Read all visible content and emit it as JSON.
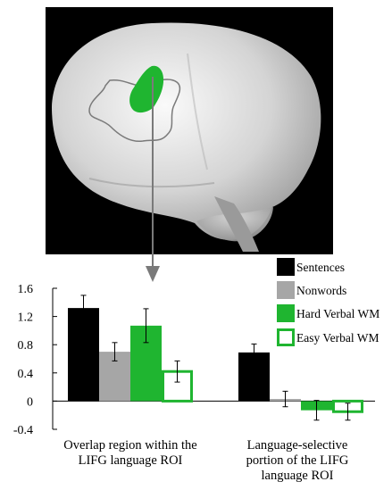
{
  "brain_image": {
    "region_colors": {
      "outline": "#7a7a7a",
      "highlight": "#1fb530",
      "background": "#000000"
    }
  },
  "chart_data": {
    "type": "bar",
    "title": "",
    "xlabel": "",
    "ylabel": "",
    "ylim": [
      -0.4,
      1.6
    ],
    "yticks": [
      "1.6",
      "1.2",
      "0.8",
      "0.4",
      "0",
      "-0.4"
    ],
    "yticks_values": [
      1.6,
      1.2,
      0.8,
      0.4,
      0,
      -0.4
    ],
    "categories": [
      [
        "Overlap region within the",
        "LIFG language ROI"
      ],
      [
        "Language-selective",
        "portion of the LIFG",
        "language ROI"
      ]
    ],
    "series": [
      {
        "name": "Sentences",
        "values": [
          1.32,
          0.69
        ],
        "errors": [
          0.18,
          0.12
        ],
        "fill": "#000000",
        "stroke": "#000000"
      },
      {
        "name": "Nonwords",
        "values": [
          0.7,
          0.03
        ],
        "errors": [
          0.13,
          0.11
        ],
        "fill": "#a6a6a6",
        "stroke": "#a6a6a6"
      },
      {
        "name": "Hard Verbal WM",
        "values": [
          1.07,
          -0.13
        ],
        "errors": [
          0.24,
          0.14
        ],
        "fill": "#1fb530",
        "stroke": "#1fb530"
      },
      {
        "name": "Easy Verbal WM",
        "values": [
          0.42,
          -0.15
        ],
        "errors": [
          0.15,
          0.12
        ],
        "fill": "#ffffff",
        "stroke": "#1fb530"
      }
    ],
    "legend_position": "top-right"
  }
}
